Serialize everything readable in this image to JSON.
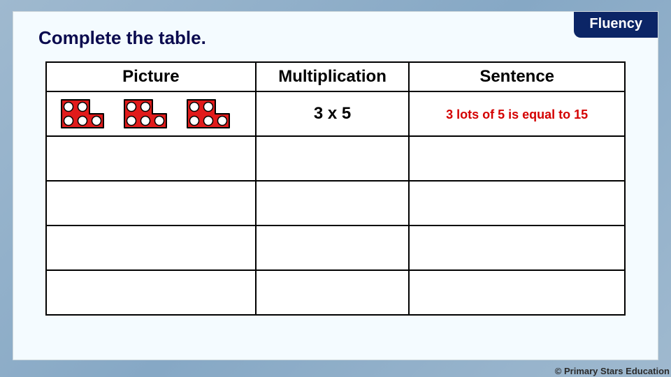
{
  "badge_label": "Fluency",
  "instruction": "Complete the table.",
  "copyright": "© Primary Stars Education",
  "colors": {
    "badge_bg": "#0b2566",
    "badge_text": "#ffffff",
    "instruction_text": "#0b0b4f",
    "page_bg": "#f4fbff",
    "sentence_text": "#d40000",
    "numicon_fill": "#e11b1b",
    "numicon_hole": "#ffffff",
    "numicon_stroke": "#000000",
    "border": "#000000"
  },
  "table": {
    "columns": [
      "Picture",
      "Multiplication",
      "Sentence"
    ],
    "rows": [
      {
        "picture": {
          "tile_count": 3,
          "tile_value": 5
        },
        "multiplication": "3 x 5",
        "sentence": "3 lots of 5 is equal to 15"
      },
      {
        "picture": null,
        "multiplication": "",
        "sentence": ""
      },
      {
        "picture": null,
        "multiplication": "",
        "sentence": ""
      },
      {
        "picture": null,
        "multiplication": "",
        "sentence": ""
      },
      {
        "picture": null,
        "multiplication": "",
        "sentence": ""
      }
    ]
  },
  "numicon_tile": {
    "width": 78,
    "height": 44,
    "hole_radius": 6.5,
    "cols": 3,
    "rows": 2
  }
}
